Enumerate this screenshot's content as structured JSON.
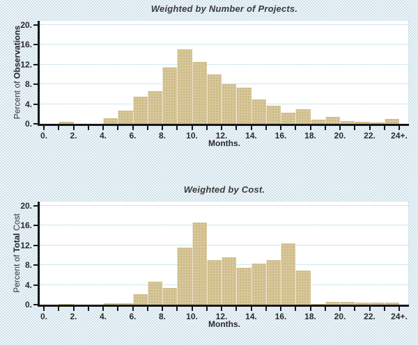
{
  "colors": {
    "bar_fill": "#d7cd94",
    "bar_dither": "#ddc2a9",
    "gridline": "#9fcfe0",
    "axis": "#161616",
    "plot_background": "#ffffff",
    "page_dither": "#cfe2ec",
    "text": "#333333"
  },
  "chart_data": [
    {
      "type": "bar",
      "title": "Weighted by Number of Projects.",
      "ylabel_parts": [
        "Percent of ",
        "Observations",
        ""
      ],
      "xlabel": "Months.",
      "bin_width_months": 1,
      "bin_start_months": [
        0,
        1,
        2,
        3,
        4,
        5,
        6,
        7,
        8,
        9,
        10,
        11,
        12,
        13,
        14,
        15,
        16,
        17,
        18,
        19,
        20,
        21,
        22,
        23
      ],
      "values": [
        0,
        0.4,
        0,
        0,
        1.1,
        2.7,
        5.5,
        6.6,
        11.4,
        15.1,
        12.5,
        10.0,
        8.1,
        7.3,
        4.9,
        3.7,
        2.2,
        3.0,
        0.8,
        1.4,
        0.6,
        0.4,
        0.3,
        1.0
      ],
      "x_tick_months": [
        0,
        2,
        4,
        6,
        8,
        10,
        12,
        14,
        16,
        18,
        20,
        22,
        24
      ],
      "x_tick_labels": [
        "0.",
        "2.",
        "4.",
        "6.",
        "8.",
        "10.",
        "12.",
        "14.",
        "16.",
        "18.",
        "20.",
        "22.",
        "24+."
      ],
      "y_tick_values": [
        0,
        4,
        8,
        12,
        16,
        20
      ],
      "y_tick_labels": [
        "0.",
        "4.",
        "8.",
        "12.",
        "16.",
        "20."
      ],
      "ylim": [
        0,
        20
      ],
      "grid": "horizontal-dotted",
      "legend": "none"
    },
    {
      "type": "bar",
      "title": "Weighted by Cost.",
      "ylabel_parts": [
        "Percent of ",
        "Total",
        " Cost"
      ],
      "xlabel": "Months.",
      "bin_width_months": 1,
      "bin_start_months": [
        0,
        1,
        2,
        3,
        4,
        5,
        6,
        7,
        8,
        9,
        10,
        11,
        12,
        13,
        14,
        15,
        16,
        17,
        18,
        19,
        20,
        21,
        22,
        23
      ],
      "values": [
        0,
        0.2,
        0,
        0,
        0.3,
        0.3,
        2.1,
        4.6,
        3.4,
        11.5,
        16.6,
        9.0,
        9.6,
        7.4,
        8.3,
        9.0,
        12.4,
        6.9,
        0.2,
        0.5,
        0.5,
        0.4,
        0.4,
        0.4
      ],
      "x_tick_months": [
        0,
        2,
        4,
        6,
        8,
        10,
        12,
        14,
        16,
        18,
        20,
        22,
        24
      ],
      "x_tick_labels": [
        "0.",
        "2.",
        "4.",
        "6.",
        "8.",
        "10.",
        "12.",
        "14.",
        "16.",
        "18.",
        "20.",
        "22.",
        "24+."
      ],
      "y_tick_values": [
        0,
        4,
        8,
        12,
        16,
        20
      ],
      "y_tick_labels": [
        "0.",
        "4.",
        "8.",
        "12.",
        "16.",
        "20."
      ],
      "ylim": [
        0,
        20
      ],
      "grid": "horizontal-dotted",
      "legend": "none"
    }
  ]
}
